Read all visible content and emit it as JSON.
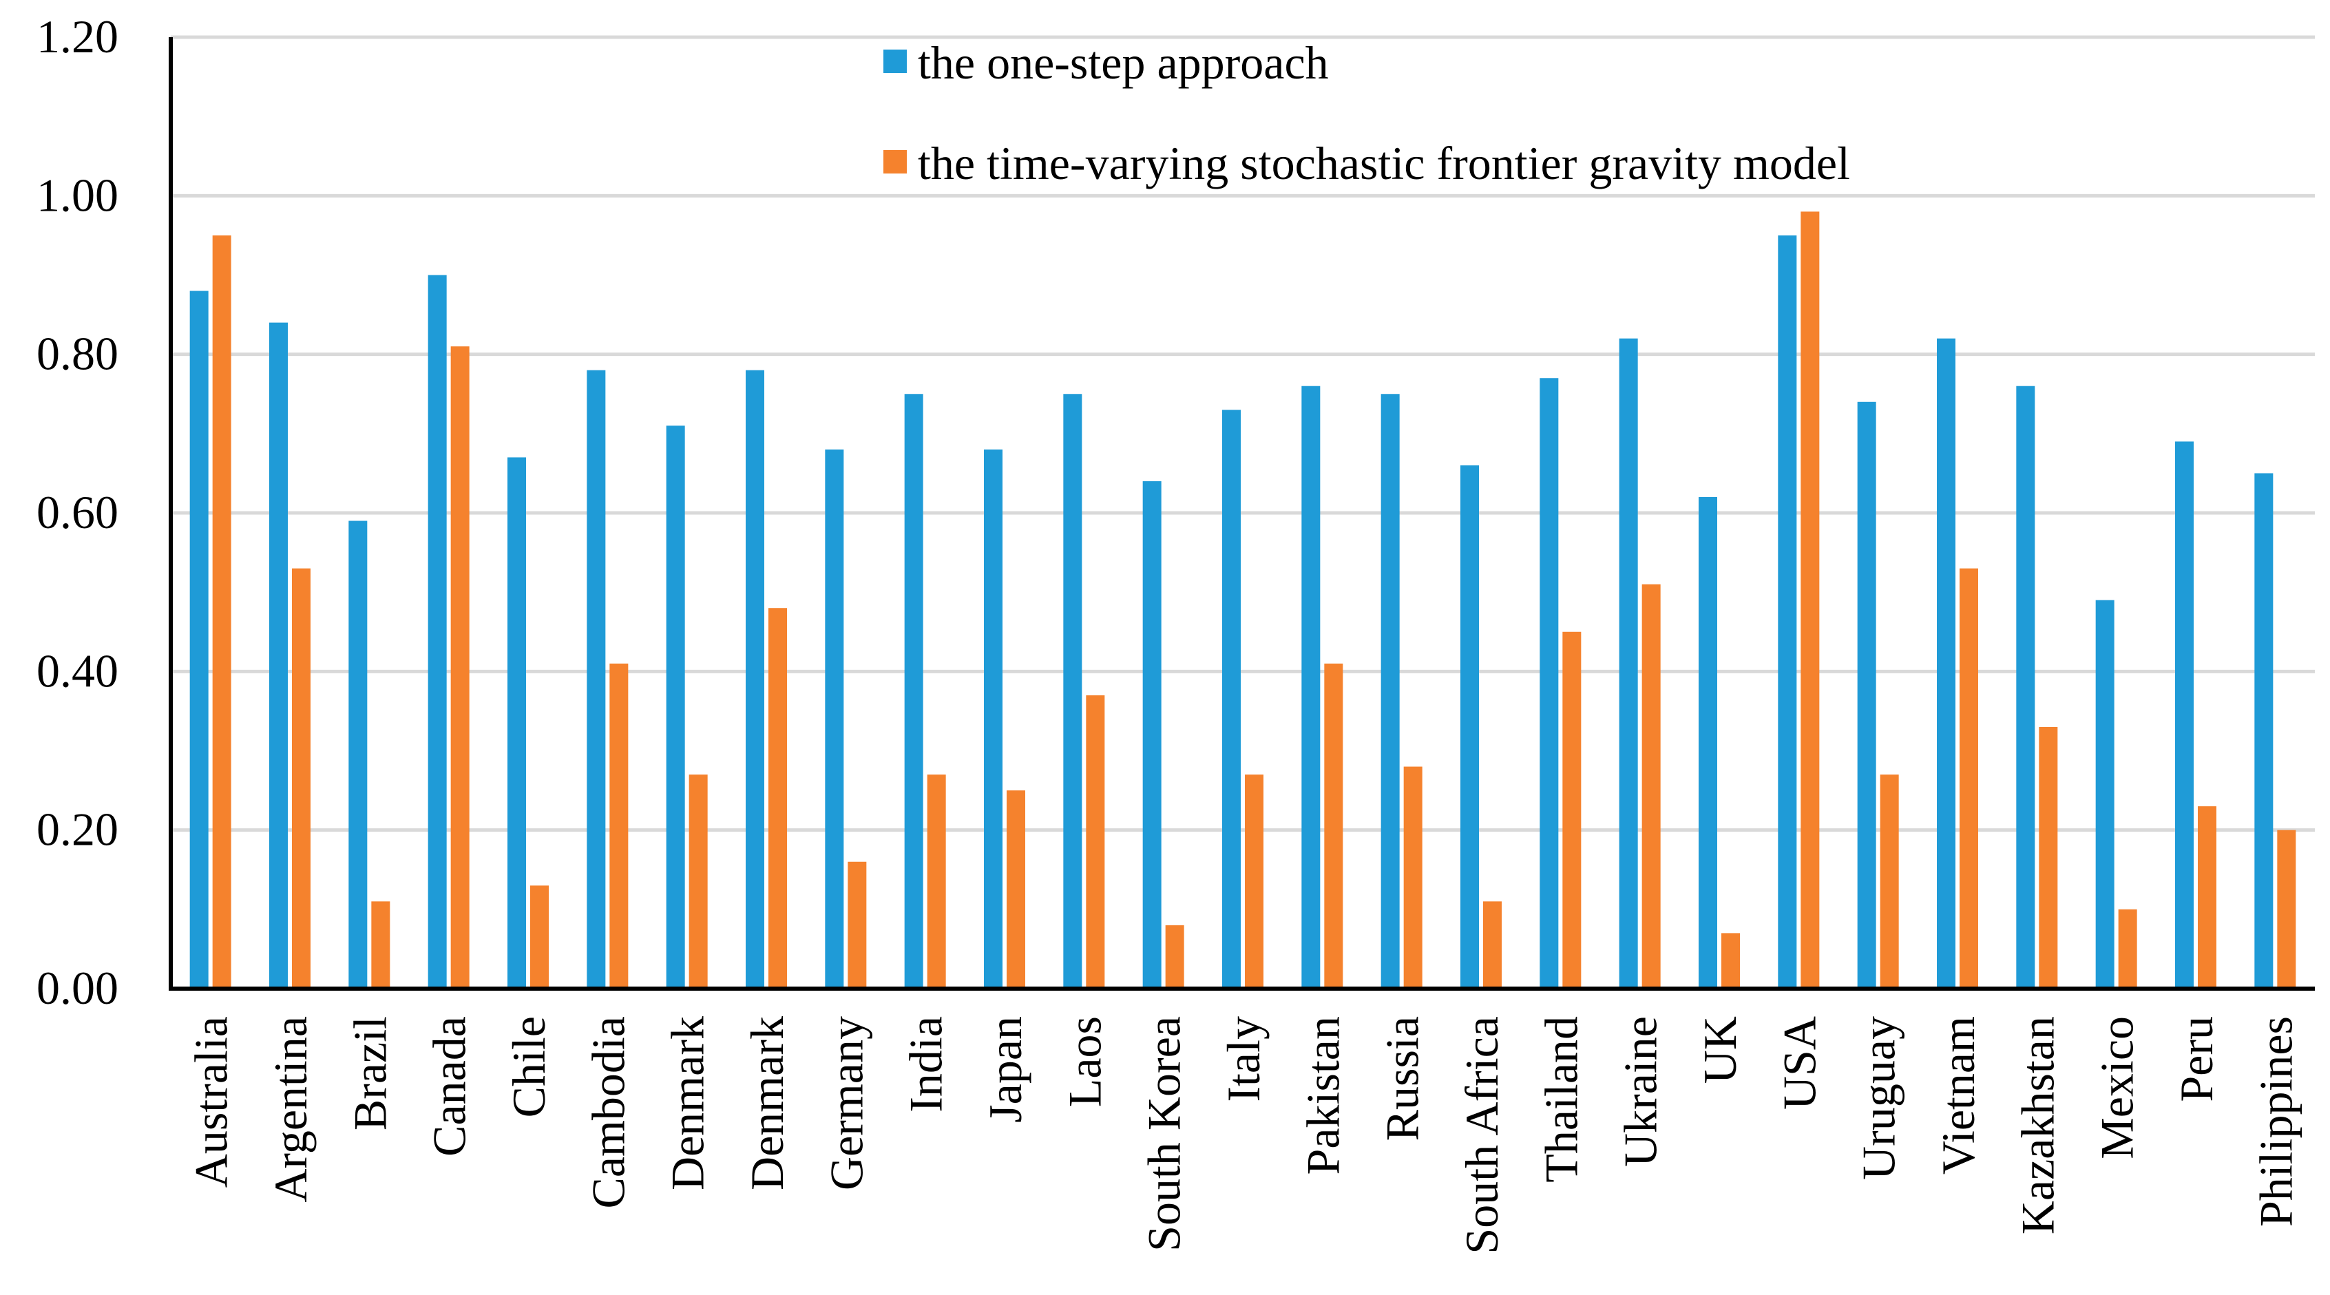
{
  "chart_data": {
    "type": "bar",
    "title": "",
    "xlabel": "",
    "ylabel": "",
    "ylim": [
      0,
      1.2
    ],
    "yticks": [
      "0.00",
      "0.20",
      "0.40",
      "0.60",
      "0.80",
      "1.00",
      "1.20"
    ],
    "grid": true,
    "legend_position": "top-center",
    "categories": [
      "Australia",
      "Argentina",
      "Brazil",
      "Canada",
      "Chile",
      "Cambodia",
      "Denmark",
      "Denmark",
      "Germany",
      "India",
      "Japan",
      "Laos",
      "South Korea",
      "Italy",
      "Pakistan",
      "Russia",
      "South Africa",
      "Thailand",
      "Ukraine",
      "UK",
      "USA",
      "Uruguay",
      "Vietnam",
      "Kazakhstan",
      "Mexico",
      "Peru",
      "Philippines"
    ],
    "series": [
      {
        "name": "the one-step approach",
        "color": "#1f9bd7",
        "values": [
          0.88,
          0.84,
          0.59,
          0.9,
          0.67,
          0.78,
          0.71,
          0.78,
          0.68,
          0.75,
          0.68,
          0.75,
          0.64,
          0.73,
          0.76,
          0.75,
          0.66,
          0.77,
          0.82,
          0.62,
          0.95,
          0.74,
          0.82,
          0.76,
          0.49,
          0.69,
          0.65
        ]
      },
      {
        "name": "the time-varying stochastic frontier gravity model",
        "color": "#f5822d",
        "values": [
          0.95,
          0.53,
          0.11,
          0.81,
          0.13,
          0.41,
          0.27,
          0.48,
          0.16,
          0.27,
          0.25,
          0.37,
          0.08,
          0.27,
          0.41,
          0.28,
          0.11,
          0.45,
          0.51,
          0.07,
          0.98,
          0.27,
          0.53,
          0.33,
          0.1,
          0.23,
          0.2
        ]
      }
    ]
  }
}
